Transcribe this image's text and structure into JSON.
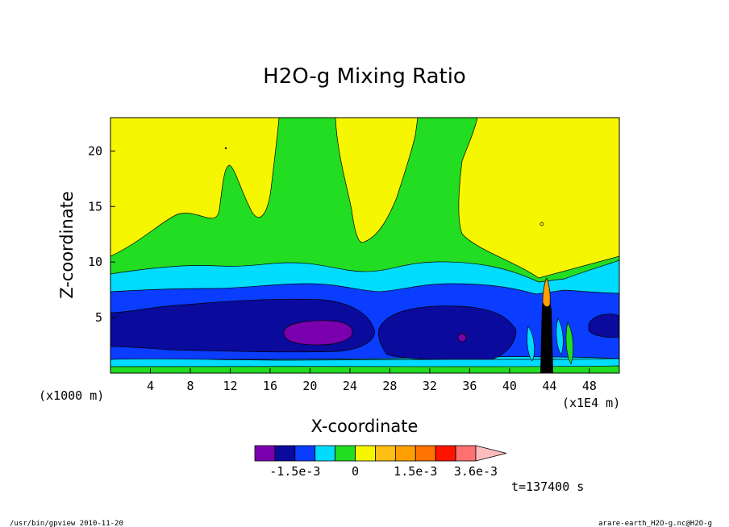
{
  "chart_data": {
    "type": "contour",
    "title": "H2O-g Mixing Ratio",
    "xlabel": "X-coordinate",
    "ylabel": "Z-coordinate",
    "x_unit_label": "(x1E4 m)",
    "y_unit_label": "(x1000 m)",
    "xlim": [
      0,
      51
    ],
    "ylim": [
      0,
      23
    ],
    "xticks": [
      "4",
      "8",
      "12",
      "16",
      "20",
      "24",
      "28",
      "32",
      "36",
      "40",
      "44",
      "48"
    ],
    "yticks": [
      "5",
      "10",
      "15",
      "20"
    ],
    "xtick_values": [
      4,
      8,
      12,
      16,
      20,
      24,
      28,
      32,
      36,
      40,
      44,
      48
    ],
    "ytick_values": [
      5,
      10,
      15,
      20
    ],
    "colorbar": {
      "levels": [
        "-1.5e-3",
        "0",
        "1.5e-3",
        "3.6e-3"
      ],
      "colors": [
        "#7a00ad",
        "#0a0a9c",
        "#0a3dff",
        "#00dcff",
        "#22dd22",
        "#f6f600",
        "#ffbe14",
        "#ff9f00",
        "#ff7300",
        "#ff1400",
        "#ff7070",
        "#ffbcbc"
      ]
    },
    "field_colors": {
      "upper": "#f6f600",
      "band": "#22dd22",
      "cyan": "#00dcff",
      "blue": "#0a3dff",
      "navy": "#0a0a9c",
      "violet": "#7a00ad",
      "orange": "#ff9f00",
      "dark": "#000000"
    }
  },
  "time_label": "t=137400 s",
  "footer": {
    "left": "/usr/bin/gpview  2010-11-20",
    "right": "arare-earth_H2O-g.nc@H2O-g"
  }
}
